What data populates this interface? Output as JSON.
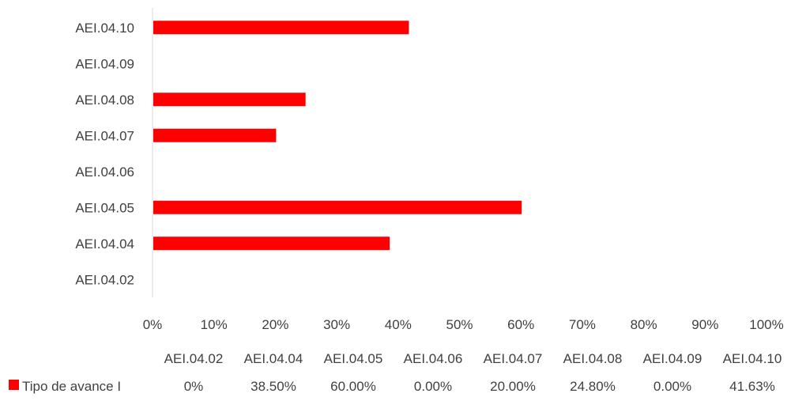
{
  "chart_data": {
    "type": "bar",
    "orientation": "horizontal",
    "categories": [
      "AEI.04.02",
      "AEI.04.04",
      "AEI.04.05",
      "AEI.04.06",
      "AEI.04.07",
      "AEI.04.08",
      "AEI.04.09",
      "AEI.04.10"
    ],
    "series": [
      {
        "name": "Tipo de avance I",
        "values": [
          0,
          38.5,
          60.0,
          0.0,
          20.0,
          24.8,
          0.0,
          41.63
        ],
        "labels": [
          "0%",
          "38.50%",
          "60.00%",
          "0.00%",
          "20.00%",
          "24.80%",
          "0.00%",
          "41.63%"
        ],
        "color": "#ff0000"
      }
    ],
    "xlim": [
      0,
      100
    ],
    "xticks": [
      "0%",
      "10%",
      "20%",
      "30%",
      "40%",
      "50%",
      "60%",
      "70%",
      "80%",
      "90%",
      "100%"
    ],
    "grid": false,
    "legend": "bottom-left",
    "data_table": true
  }
}
